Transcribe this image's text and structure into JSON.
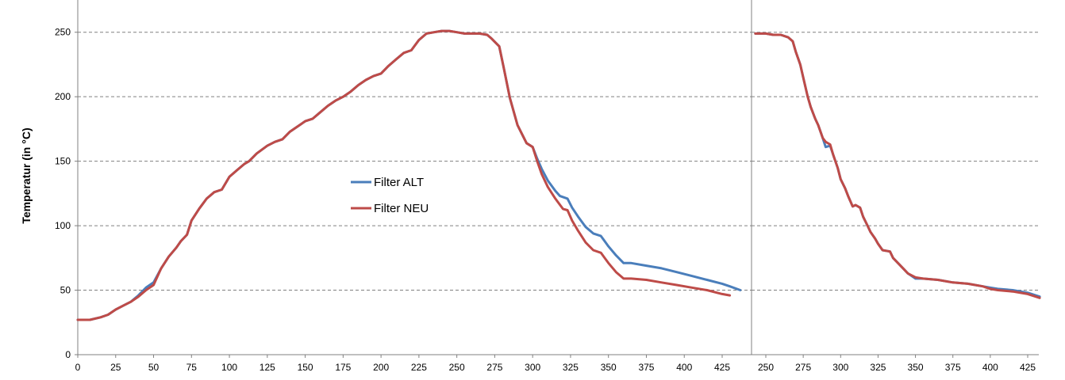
{
  "colors": {
    "series_alt": "#4a7ebb",
    "series_neu": "#be4b48",
    "grid": "#808080",
    "axis": "#808080"
  },
  "chart_data": [
    {
      "type": "line",
      "title": "",
      "xlabel": "",
      "ylabel": "Temperatur (in °C)",
      "xlim": [
        0,
        437
      ],
      "ylim": [
        0,
        275
      ],
      "xticks": [
        0,
        25,
        50,
        75,
        100,
        125,
        150,
        175,
        200,
        225,
        250,
        275,
        300,
        325,
        350,
        375,
        400,
        425
      ],
      "yticks": [
        0,
        50,
        100,
        150,
        200,
        250
      ],
      "grid": "horizontal dashed",
      "legend": "center",
      "series": [
        {
          "name": "Filter ALT",
          "color": "#4a7ebb",
          "points": [
            [
              0,
              27
            ],
            [
              8,
              27
            ],
            [
              15,
              29
            ],
            [
              20,
              31
            ],
            [
              25,
              35
            ],
            [
              30,
              38
            ],
            [
              35,
              41
            ],
            [
              40,
              46
            ],
            [
              45,
              52
            ],
            [
              50,
              56
            ],
            [
              55,
              67
            ],
            [
              60,
              76
            ],
            [
              65,
              83
            ],
            [
              68,
              88
            ],
            [
              72,
              93
            ],
            [
              75,
              104
            ],
            [
              80,
              113
            ],
            [
              85,
              121
            ],
            [
              90,
              126
            ],
            [
              95,
              128
            ],
            [
              100,
              138
            ],
            [
              105,
              143
            ],
            [
              110,
              148
            ],
            [
              113,
              150
            ],
            [
              118,
              156
            ],
            [
              125,
              162
            ],
            [
              130,
              165
            ],
            [
              135,
              167
            ],
            [
              140,
              173
            ],
            [
              145,
              177
            ],
            [
              150,
              181
            ],
            [
              155,
              183
            ],
            [
              160,
              188
            ],
            [
              165,
              193
            ],
            [
              170,
              197
            ],
            [
              175,
              200
            ],
            [
              180,
              204
            ],
            [
              185,
              209
            ],
            [
              190,
              213
            ],
            [
              195,
              216
            ],
            [
              200,
              218
            ],
            [
              205,
              224
            ],
            [
              210,
              229
            ],
            [
              215,
              234
            ],
            [
              220,
              236
            ],
            [
              225,
              244
            ],
            [
              230,
              249
            ],
            [
              235,
              250
            ],
            [
              240,
              251
            ],
            [
              245,
              251
            ],
            [
              250,
              250
            ],
            [
              255,
              249
            ],
            [
              260,
              249
            ],
            [
              265,
              249
            ],
            [
              270,
              248
            ],
            [
              273,
              245
            ],
            [
              278,
              239
            ],
            [
              281,
              222
            ],
            [
              285,
              199
            ],
            [
              290,
              178
            ],
            [
              293,
              171
            ],
            [
              296,
              164
            ],
            [
              300,
              161
            ],
            [
              303,
              152
            ],
            [
              306,
              144
            ],
            [
              310,
              135
            ],
            [
              315,
              127
            ],
            [
              318,
              123
            ],
            [
              323,
              121
            ],
            [
              326,
              114
            ],
            [
              330,
              107
            ],
            [
              335,
              99
            ],
            [
              340,
              94
            ],
            [
              345,
              92
            ],
            [
              350,
              84
            ],
            [
              355,
              77
            ],
            [
              360,
              71
            ],
            [
              365,
              71
            ],
            [
              375,
              69
            ],
            [
              385,
              67
            ],
            [
              395,
              64
            ],
            [
              405,
              61
            ],
            [
              415,
              58
            ],
            [
              425,
              55
            ],
            [
              430,
              53
            ],
            [
              437,
              50
            ]
          ]
        },
        {
          "name": "Filter NEU",
          "color": "#be4b48",
          "points": [
            [
              0,
              27
            ],
            [
              8,
              27
            ],
            [
              15,
              29
            ],
            [
              20,
              31
            ],
            [
              25,
              35
            ],
            [
              30,
              38
            ],
            [
              35,
              41
            ],
            [
              40,
              45
            ],
            [
              45,
              50
            ],
            [
              50,
              54
            ],
            [
              55,
              67
            ],
            [
              60,
              76
            ],
            [
              65,
              83
            ],
            [
              68,
              88
            ],
            [
              72,
              93
            ],
            [
              75,
              104
            ],
            [
              80,
              113
            ],
            [
              85,
              121
            ],
            [
              90,
              126
            ],
            [
              95,
              128
            ],
            [
              100,
              138
            ],
            [
              105,
              143
            ],
            [
              110,
              148
            ],
            [
              113,
              150
            ],
            [
              118,
              156
            ],
            [
              125,
              162
            ],
            [
              130,
              165
            ],
            [
              135,
              167
            ],
            [
              140,
              173
            ],
            [
              145,
              177
            ],
            [
              150,
              181
            ],
            [
              155,
              183
            ],
            [
              160,
              188
            ],
            [
              165,
              193
            ],
            [
              170,
              197
            ],
            [
              175,
              200
            ],
            [
              180,
              204
            ],
            [
              185,
              209
            ],
            [
              190,
              213
            ],
            [
              195,
              216
            ],
            [
              200,
              218
            ],
            [
              205,
              224
            ],
            [
              210,
              229
            ],
            [
              215,
              234
            ],
            [
              220,
              236
            ],
            [
              225,
              244
            ],
            [
              230,
              249
            ],
            [
              235,
              250
            ],
            [
              240,
              251
            ],
            [
              245,
              251
            ],
            [
              250,
              250
            ],
            [
              255,
              249
            ],
            [
              260,
              249
            ],
            [
              265,
              249
            ],
            [
              270,
              248
            ],
            [
              273,
              245
            ],
            [
              278,
              239
            ],
            [
              281,
              222
            ],
            [
              285,
              199
            ],
            [
              290,
              178
            ],
            [
              293,
              171
            ],
            [
              296,
              164
            ],
            [
              300,
              161
            ],
            [
              303,
              150
            ],
            [
              306,
              140
            ],
            [
              310,
              130
            ],
            [
              315,
              121
            ],
            [
              320,
              113
            ],
            [
              323,
              112
            ],
            [
              326,
              104
            ],
            [
              330,
              96
            ],
            [
              335,
              87
            ],
            [
              340,
              81
            ],
            [
              345,
              79
            ],
            [
              350,
              71
            ],
            [
              355,
              64
            ],
            [
              360,
              59
            ],
            [
              365,
              59
            ],
            [
              375,
              58
            ],
            [
              385,
              56
            ],
            [
              395,
              54
            ],
            [
              405,
              52
            ],
            [
              415,
              50
            ],
            [
              425,
              47
            ],
            [
              430,
              46
            ]
          ]
        }
      ]
    },
    {
      "type": "line",
      "title": "",
      "xlabel": "",
      "ylabel": "",
      "xlim": [
        243,
        433
      ],
      "ylim": [
        0,
        275
      ],
      "xticks": [
        250,
        275,
        300,
        325,
        350,
        375,
        400,
        425
      ],
      "yticks": [
        0,
        50,
        100,
        150,
        200,
        250
      ],
      "grid": "horizontal dashed",
      "series": [
        {
          "name": "Filter ALT",
          "color": "#4a7ebb",
          "points": [
            [
              243,
              249
            ],
            [
              250,
              249
            ],
            [
              255,
              248
            ],
            [
              260,
              248
            ],
            [
              265,
              246
            ],
            [
              268,
              243
            ],
            [
              270,
              235
            ],
            [
              273,
              225
            ],
            [
              275,
              215
            ],
            [
              278,
              200
            ],
            [
              280,
              192
            ],
            [
              283,
              183
            ],
            [
              285,
              178
            ],
            [
              288,
              168
            ],
            [
              290,
              161
            ],
            [
              293,
              162
            ],
            [
              295,
              155
            ],
            [
              298,
              145
            ],
            [
              300,
              136
            ],
            [
              303,
              129
            ],
            [
              305,
              123
            ],
            [
              308,
              115
            ],
            [
              310,
              116
            ],
            [
              313,
              114
            ],
            [
              315,
              107
            ],
            [
              318,
              100
            ],
            [
              320,
              95
            ],
            [
              323,
              90
            ],
            [
              325,
              86
            ],
            [
              328,
              81
            ],
            [
              333,
              80
            ],
            [
              335,
              75
            ],
            [
              340,
              69
            ],
            [
              345,
              63
            ],
            [
              350,
              59
            ],
            [
              355,
              59
            ],
            [
              365,
              58
            ],
            [
              375,
              56
            ],
            [
              385,
              55
            ],
            [
              395,
              53
            ],
            [
              400,
              52
            ],
            [
              405,
              51
            ],
            [
              415,
              50
            ],
            [
              425,
              48
            ],
            [
              433,
              45
            ]
          ]
        },
        {
          "name": "Filter NEU",
          "color": "#be4b48",
          "points": [
            [
              243,
              249
            ],
            [
              250,
              249
            ],
            [
              255,
              248
            ],
            [
              260,
              248
            ],
            [
              265,
              246
            ],
            [
              268,
              243
            ],
            [
              270,
              235
            ],
            [
              273,
              225
            ],
            [
              275,
              215
            ],
            [
              278,
              200
            ],
            [
              280,
              192
            ],
            [
              283,
              183
            ],
            [
              285,
              178
            ],
            [
              288,
              168
            ],
            [
              290,
              165
            ],
            [
              293,
              163
            ],
            [
              295,
              155
            ],
            [
              298,
              145
            ],
            [
              300,
              136
            ],
            [
              303,
              129
            ],
            [
              305,
              123
            ],
            [
              308,
              115
            ],
            [
              310,
              116
            ],
            [
              313,
              114
            ],
            [
              315,
              107
            ],
            [
              318,
              100
            ],
            [
              320,
              95
            ],
            [
              323,
              90
            ],
            [
              325,
              86
            ],
            [
              328,
              81
            ],
            [
              333,
              80
            ],
            [
              335,
              75
            ],
            [
              340,
              69
            ],
            [
              345,
              63
            ],
            [
              350,
              60
            ],
            [
              355,
              59
            ],
            [
              365,
              58
            ],
            [
              375,
              56
            ],
            [
              385,
              55
            ],
            [
              395,
              53
            ],
            [
              400,
              51
            ],
            [
              405,
              50
            ],
            [
              415,
              49
            ],
            [
              425,
              47
            ],
            [
              433,
              44
            ]
          ]
        }
      ]
    }
  ]
}
